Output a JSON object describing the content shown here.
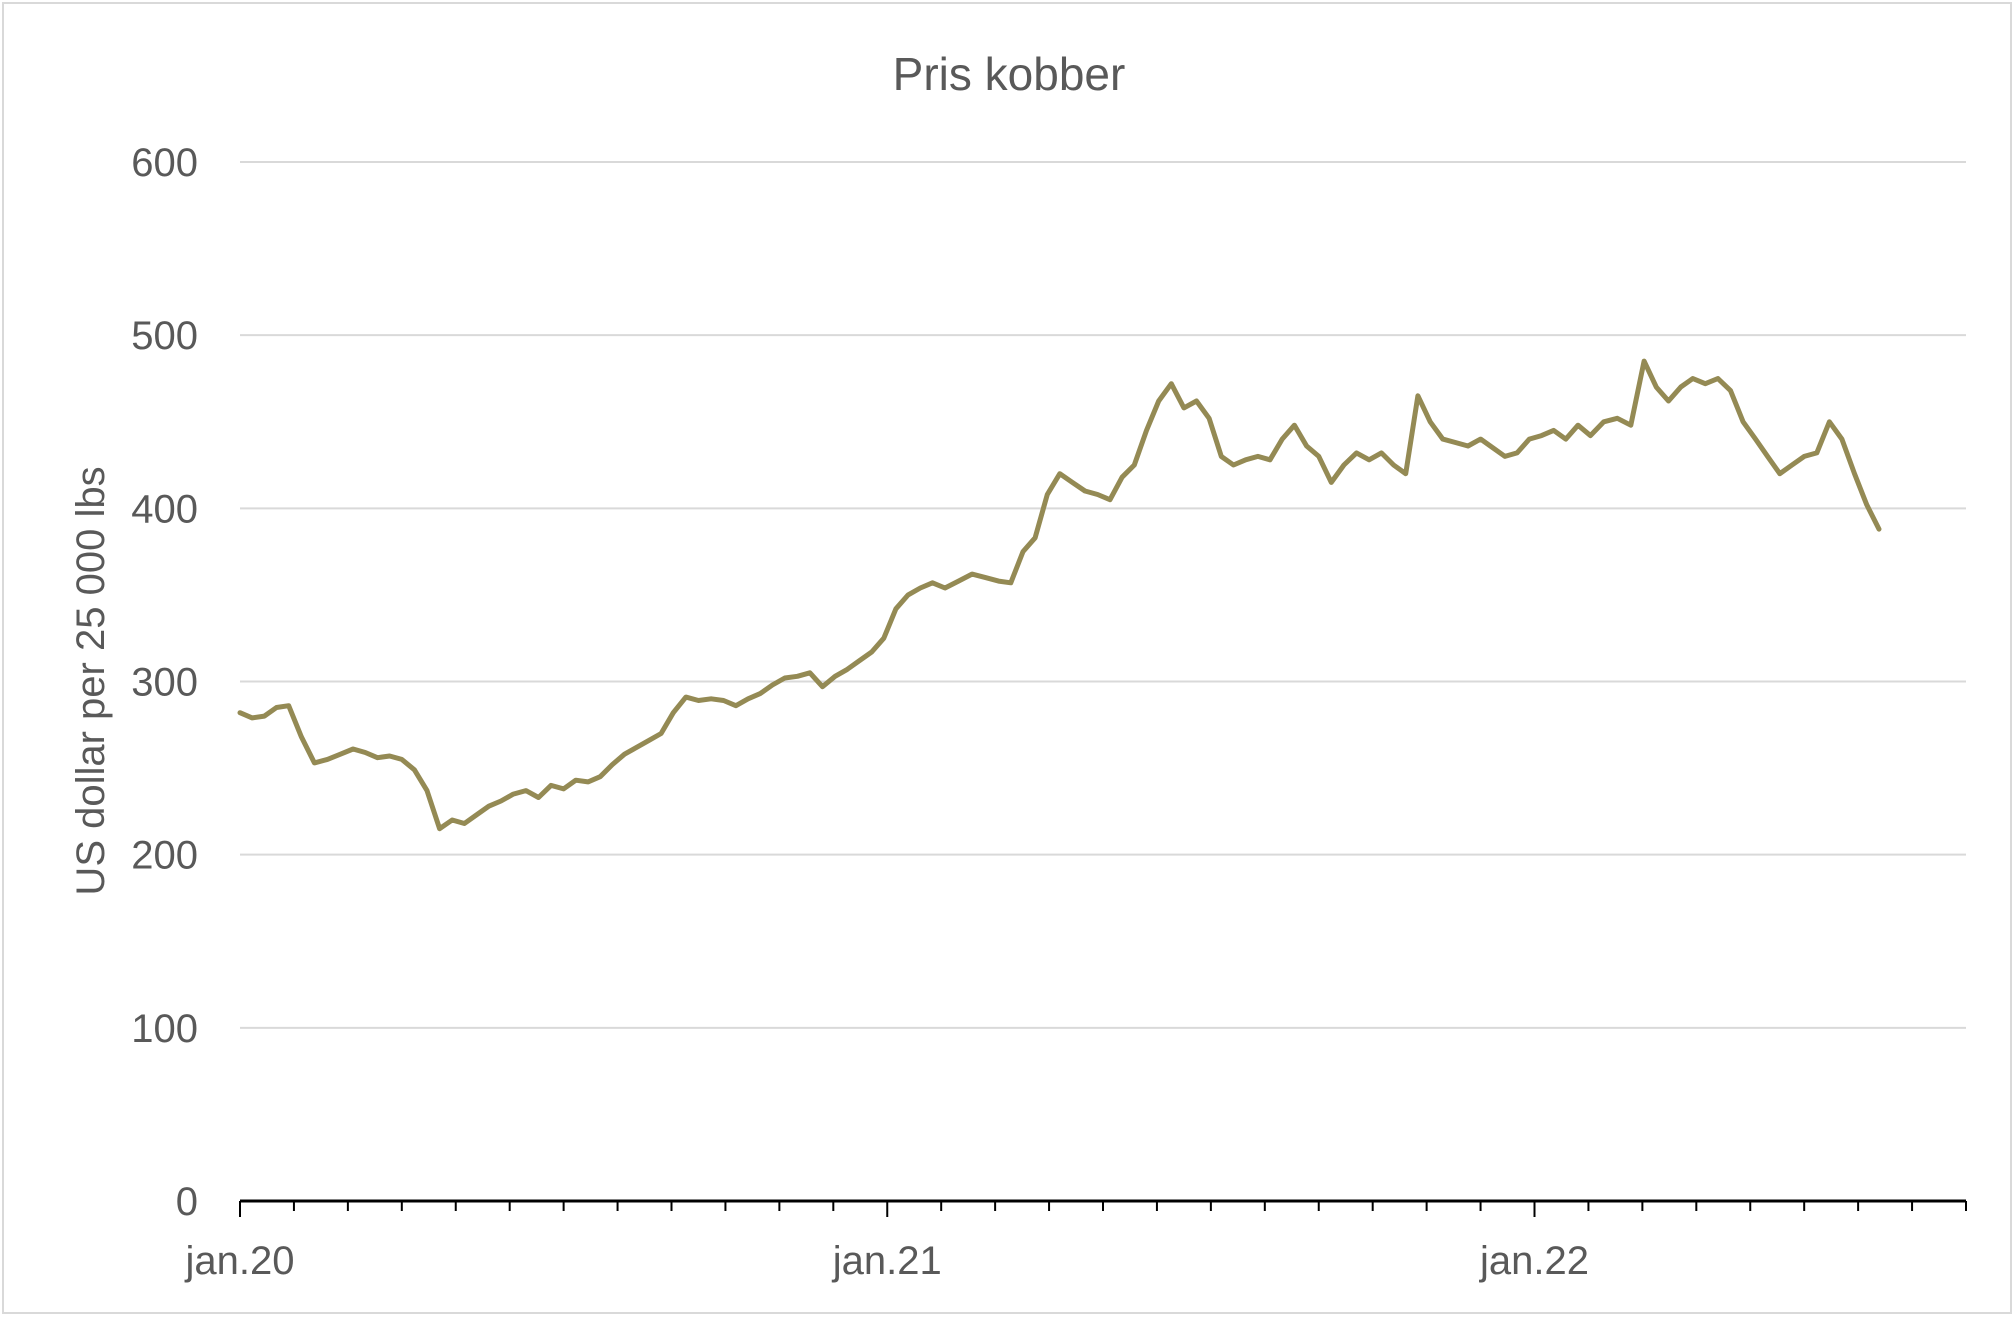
{
  "chart_data": {
    "type": "line",
    "title": "Pris kobber",
    "ylabel": "US dollar per 25 000 lbs",
    "xlabel": "",
    "ylim": [
      0,
      600
    ],
    "yticks": [
      0,
      100,
      200,
      300,
      400,
      500,
      600
    ],
    "xlim": [
      "2020-01",
      "2022-09"
    ],
    "xticks": [
      {
        "label": "jan.20",
        "date": "2020-01"
      },
      {
        "label": "jan.21",
        "date": "2021-01"
      },
      {
        "label": "jan.22",
        "date": "2022-01"
      }
    ],
    "grid": true,
    "legend": "none",
    "series": [
      {
        "color": "#948a54",
        "points": [
          [
            "2020-01-01",
            282
          ],
          [
            "2020-01-08",
            279
          ],
          [
            "2020-01-15",
            280
          ],
          [
            "2020-01-22",
            285
          ],
          [
            "2020-01-29",
            286
          ],
          [
            "2020-02-05",
            268
          ],
          [
            "2020-02-12",
            253
          ],
          [
            "2020-02-19",
            255
          ],
          [
            "2020-02-26",
            258
          ],
          [
            "2020-03-04",
            261
          ],
          [
            "2020-03-11",
            259
          ],
          [
            "2020-03-18",
            256
          ],
          [
            "2020-03-25",
            257
          ],
          [
            "2020-04-01",
            255
          ],
          [
            "2020-04-08",
            249
          ],
          [
            "2020-04-15",
            237
          ],
          [
            "2020-04-22",
            215
          ],
          [
            "2020-04-29",
            220
          ],
          [
            "2020-05-06",
            218
          ],
          [
            "2020-05-13",
            223
          ],
          [
            "2020-05-20",
            228
          ],
          [
            "2020-05-27",
            231
          ],
          [
            "2020-06-03",
            235
          ],
          [
            "2020-06-10",
            237
          ],
          [
            "2020-06-17",
            233
          ],
          [
            "2020-06-24",
            240
          ],
          [
            "2020-07-01",
            238
          ],
          [
            "2020-07-08",
            243
          ],
          [
            "2020-07-15",
            242
          ],
          [
            "2020-07-22",
            245
          ],
          [
            "2020-07-29",
            252
          ],
          [
            "2020-08-05",
            258
          ],
          [
            "2020-08-12",
            262
          ],
          [
            "2020-08-19",
            266
          ],
          [
            "2020-08-26",
            270
          ],
          [
            "2020-09-02",
            282
          ],
          [
            "2020-09-09",
            291
          ],
          [
            "2020-09-16",
            289
          ],
          [
            "2020-09-23",
            290
          ],
          [
            "2020-09-30",
            289
          ],
          [
            "2020-10-07",
            286
          ],
          [
            "2020-10-14",
            290
          ],
          [
            "2020-10-21",
            293
          ],
          [
            "2020-10-28",
            298
          ],
          [
            "2020-11-04",
            302
          ],
          [
            "2020-11-11",
            303
          ],
          [
            "2020-11-18",
            305
          ],
          [
            "2020-11-25",
            297
          ],
          [
            "2020-12-02",
            303
          ],
          [
            "2020-12-09",
            307
          ],
          [
            "2020-12-16",
            312
          ],
          [
            "2020-12-23",
            317
          ],
          [
            "2020-12-30",
            325
          ],
          [
            "2021-01-06",
            342
          ],
          [
            "2021-01-13",
            350
          ],
          [
            "2021-01-20",
            354
          ],
          [
            "2021-01-27",
            357
          ],
          [
            "2021-02-03",
            354
          ],
          [
            "2021-02-10",
            358
          ],
          [
            "2021-02-17",
            362
          ],
          [
            "2021-02-24",
            360
          ],
          [
            "2021-03-03",
            358
          ],
          [
            "2021-03-10",
            357
          ],
          [
            "2021-03-17",
            375
          ],
          [
            "2021-03-24",
            383
          ],
          [
            "2021-03-31",
            408
          ],
          [
            "2021-04-07",
            420
          ],
          [
            "2021-04-14",
            415
          ],
          [
            "2021-04-21",
            410
          ],
          [
            "2021-04-28",
            408
          ],
          [
            "2021-05-05",
            405
          ],
          [
            "2021-05-12",
            418
          ],
          [
            "2021-05-19",
            425
          ],
          [
            "2021-05-26",
            445
          ],
          [
            "2021-06-02",
            462
          ],
          [
            "2021-06-09",
            472
          ],
          [
            "2021-06-16",
            458
          ],
          [
            "2021-06-23",
            462
          ],
          [
            "2021-06-30",
            452
          ],
          [
            "2021-07-07",
            430
          ],
          [
            "2021-07-14",
            425
          ],
          [
            "2021-07-21",
            428
          ],
          [
            "2021-07-28",
            430
          ],
          [
            "2021-08-04",
            428
          ],
          [
            "2021-08-11",
            440
          ],
          [
            "2021-08-18",
            448
          ],
          [
            "2021-08-25",
            436
          ],
          [
            "2021-09-01",
            430
          ],
          [
            "2021-09-08",
            415
          ],
          [
            "2021-09-15",
            425
          ],
          [
            "2021-09-22",
            432
          ],
          [
            "2021-09-29",
            428
          ],
          [
            "2021-10-06",
            432
          ],
          [
            "2021-10-13",
            425
          ],
          [
            "2021-10-20",
            420
          ],
          [
            "2021-10-27",
            465
          ],
          [
            "2021-11-03",
            450
          ],
          [
            "2021-11-10",
            440
          ],
          [
            "2021-11-17",
            438
          ],
          [
            "2021-11-24",
            436
          ],
          [
            "2021-12-01",
            440
          ],
          [
            "2021-12-08",
            435
          ],
          [
            "2021-12-15",
            430
          ],
          [
            "2021-12-22",
            432
          ],
          [
            "2021-12-29",
            440
          ],
          [
            "2022-01-05",
            442
          ],
          [
            "2022-01-12",
            445
          ],
          [
            "2022-01-19",
            440
          ],
          [
            "2022-01-26",
            448
          ],
          [
            "2022-02-02",
            442
          ],
          [
            "2022-02-09",
            450
          ],
          [
            "2022-02-16",
            452
          ],
          [
            "2022-02-23",
            448
          ],
          [
            "2022-03-02",
            485
          ],
          [
            "2022-03-09",
            470
          ],
          [
            "2022-03-16",
            462
          ],
          [
            "2022-03-23",
            470
          ],
          [
            "2022-03-30",
            475
          ],
          [
            "2022-04-06",
            472
          ],
          [
            "2022-04-13",
            475
          ],
          [
            "2022-04-20",
            468
          ],
          [
            "2022-04-27",
            450
          ],
          [
            "2022-05-04",
            440
          ],
          [
            "2022-05-11",
            430
          ],
          [
            "2022-05-18",
            420
          ],
          [
            "2022-05-25",
            425
          ],
          [
            "2022-06-01",
            430
          ],
          [
            "2022-06-08",
            432
          ],
          [
            "2022-06-15",
            450
          ],
          [
            "2022-06-22",
            440
          ],
          [
            "2022-06-29",
            420
          ],
          [
            "2022-07-06",
            402
          ],
          [
            "2022-07-13",
            388
          ]
        ]
      }
    ]
  }
}
